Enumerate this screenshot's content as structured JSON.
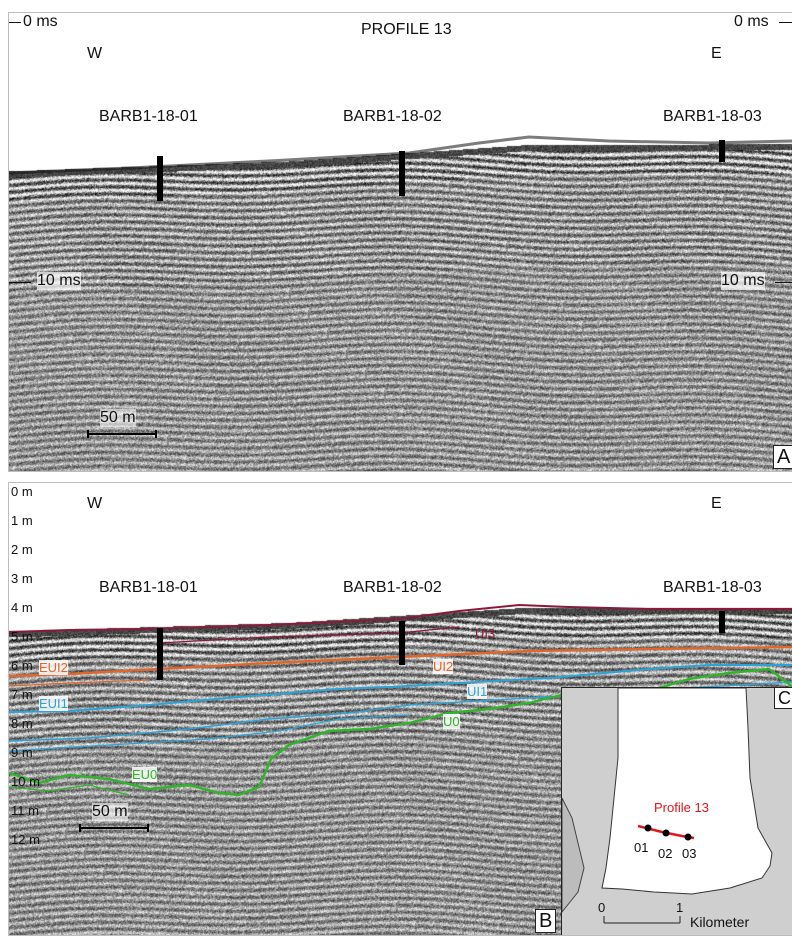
{
  "panel_a": {
    "title": "PROFILE 13",
    "time_top_left": "0 ms",
    "time_top_right": "0 ms",
    "time_mid_left": "10 ms",
    "time_mid_right": "10 ms",
    "west": "W",
    "east": "E",
    "boreholes": [
      "BARB1-18-01",
      "BARB1-18-02",
      "BARB1-18-03"
    ],
    "scale": "50 m",
    "letter": "A"
  },
  "panel_b": {
    "west": "W",
    "east": "E",
    "boreholes": [
      "BARB1-18-01",
      "BARB1-18-02",
      "BARB1-18-03"
    ],
    "depth_labels": [
      "0 m",
      "1 m",
      "2 m",
      "3 m",
      "4 m",
      "5 m",
      "6 m",
      "7 m",
      "8 m",
      "9 m",
      "10 m",
      "11 m",
      "12 m"
    ],
    "horizons": {
      "ui3": "UI3",
      "eui2": "EUI2",
      "ui2": "UI2",
      "eui1": "EUI1",
      "ui1": "UI1",
      "u0": "U0",
      "eu0": "EU0"
    },
    "horizon_colors": {
      "ui3": "#8b1a3a",
      "ui2": "#e0662a",
      "ui1": "#2ba3d8",
      "u0": "#2fb52a"
    },
    "scale": "50 m",
    "letter": "B"
  },
  "inset": {
    "profile": "Profile 13",
    "sites": [
      "01",
      "02",
      "03"
    ],
    "scale_zero": "0",
    "scale_one": "1",
    "unit": "Kilometer",
    "letter": "C",
    "profile_color": "#e3141b"
  }
}
